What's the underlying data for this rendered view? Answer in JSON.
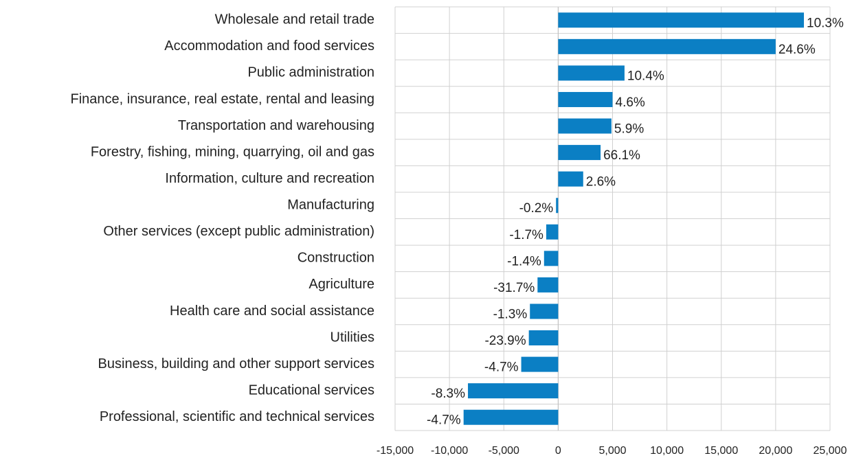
{
  "chart_data": {
    "type": "hbar",
    "categories": [
      "Wholesale and retail trade",
      "Accommodation and food services",
      "Public administration",
      "Finance, insurance, real estate, rental and leasing",
      "Transportation and warehousing",
      "Forestry, fishing, mining, quarrying, oil and gas",
      "Information, culture and recreation",
      "Manufacturing",
      "Other services (except public administration)",
      "Construction",
      "Agriculture",
      "Health care and social assistance",
      "Utilities",
      "Business, building and other support services",
      "Educational services",
      "Professional, scientific and technical services"
    ],
    "values": [
      22600,
      20000,
      6100,
      5000,
      4900,
      3900,
      2300,
      -200,
      -1100,
      -1300,
      -1900,
      -2600,
      -2700,
      -3400,
      -8300,
      -8700
    ],
    "data_labels": [
      "10.3%",
      "24.6%",
      "10.4%",
      "4.6%",
      "5.9%",
      "66.1%",
      "2.6%",
      "-0.2%",
      "-1.7%",
      "-1.4%",
      "-31.7%",
      "-1.3%",
      "-23.9%",
      "-4.7%",
      "-8.3%",
      "-4.7%"
    ],
    "color": "#0b7fc4",
    "xlim": [
      -15000,
      25000
    ],
    "xticks": [
      {
        "value": -15000,
        "label": "-15,000"
      },
      {
        "value": -10000,
        "label": "-10,000"
      },
      {
        "value": -5000,
        "label": "-5,000"
      },
      0,
      {
        "value": 5000,
        "label": "5,000"
      },
      {
        "value": 10000,
        "label": "10,000"
      },
      {
        "value": 15000,
        "label": "15,000"
      },
      {
        "value": 20000,
        "label": "20,000"
      },
      {
        "value": 25000,
        "label": "25,000"
      }
    ],
    "grid": true
  }
}
